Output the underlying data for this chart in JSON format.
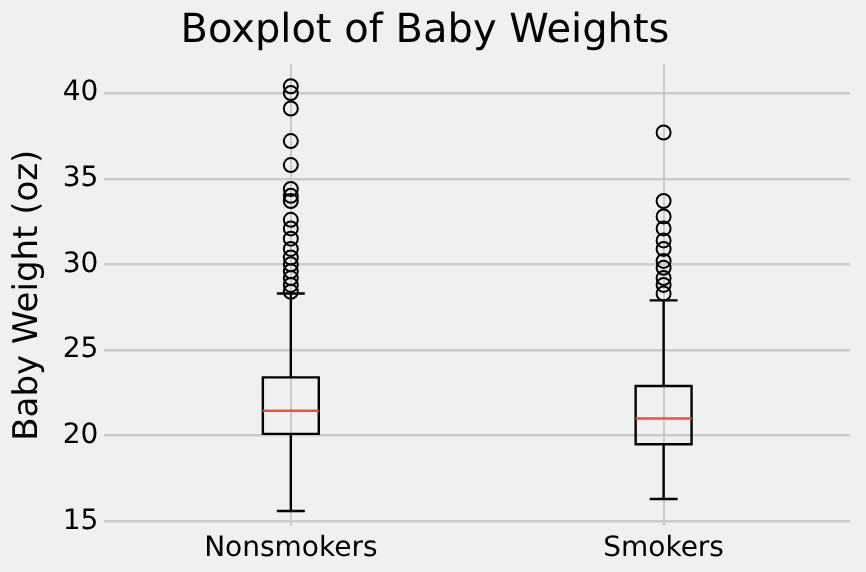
{
  "chart_data": {
    "type": "box",
    "title": "Boxplot of Baby Weights",
    "ylabel": "Baby Weight (oz)",
    "categories": [
      "Nonsmokers",
      "Smokers"
    ],
    "color": "#000000",
    "boxes": [
      {
        "low": 15.6,
        "q1": 20.1,
        "median": 21.45,
        "q3": 23.4,
        "high": 28.3,
        "outliers": [
          40.4,
          40.0,
          39.1,
          37.2,
          35.8,
          34.4,
          34.0,
          33.7,
          32.6,
          32.1,
          31.5,
          30.9,
          30.4,
          30.0,
          29.6,
          29.2,
          28.8,
          28.4
        ]
      },
      {
        "low": 16.3,
        "q1": 19.5,
        "median": 21.0,
        "q3": 22.9,
        "high": 27.9,
        "outliers": [
          37.7,
          33.7,
          32.8,
          32.1,
          31.4,
          30.9,
          30.2,
          29.8,
          29.2,
          28.8,
          28.3
        ]
      }
    ],
    "ylim": [
      14.7,
      41.7
    ],
    "yticks": [
      15,
      20,
      25,
      30,
      35,
      40
    ],
    "grid": true,
    "marker": "circle"
  }
}
